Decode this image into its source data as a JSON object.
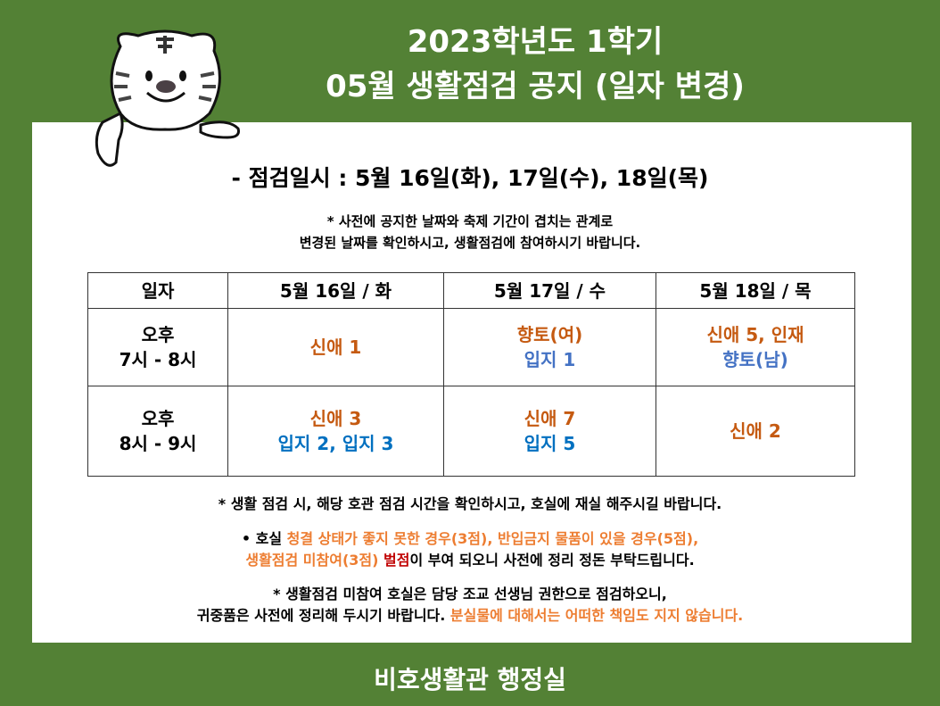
{
  "title": {
    "line1": "2023학년도 1학기",
    "line2": "05월 생활점검 공지 (일자 변경)"
  },
  "inspection_dates": "- 점검일시 :  5월 16일(화), 17일(수), 18일(목)",
  "change_note": {
    "line1": "* 사전에 공지한 날짜와 축제 기간이 겹치는 관계로",
    "line2": "변경된 날짜를 확인하시고, 생활점검에 참여하시기 바랍니다."
  },
  "table": {
    "headers": [
      "일자",
      "5월 16일 / 화",
      "5월 17일 / 수",
      "5월 18일 / 목"
    ],
    "rows": [
      {
        "time1": "오후",
        "time2": "7시 - 8시",
        "cells": [
          [
            "신애 1",
            ""
          ],
          [
            "향토(여)",
            "입지 1"
          ],
          [
            "신애 5, 인재",
            "향토(남)"
          ]
        ]
      },
      {
        "time1": "오후",
        "time2": "8시 - 9시",
        "cells": [
          [
            "신애 3",
            "입지 2, 입지 3"
          ],
          [
            "신애 7",
            "입지 5"
          ],
          [
            "신애 2",
            ""
          ]
        ]
      }
    ]
  },
  "notes": {
    "n1": "* 생활 점검 시,  해당 호관 점검 시간을 확인하시고, 호실에 재실 해주시길 바랍니다.",
    "n2a": "•   호실 ",
    "n2b": "청결 상태가 좋지 못한 경우(3점), 반입금지 물품이 있을 경우(5점),",
    "n2c": "생활점검 미참여(3점) ",
    "n2d": "벌점",
    "n2e": "이 부여 되오니 사전에 정리 정돈 부탁드립니다.",
    "n3a": "* 생활점검 미참여 호실은 담당 조교 선생님 권한으로 점검하오니,",
    "n3b": "귀중품은 사전에 정리해 두시기 바랍니다. ",
    "n3c": "분실물에 대해서는 어떠한 책임도 지지 않습니다."
  },
  "footer": "비호생활관 행정실",
  "colors": {
    "background": "#538135",
    "group_orange": "#c55a11",
    "group_blue": "#0070c0",
    "warning_orange": "#ed7d31",
    "penalty_red": "#c00000"
  }
}
